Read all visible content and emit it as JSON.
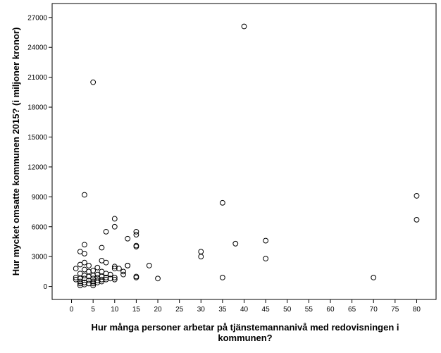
{
  "chart_data": {
    "type": "scatter",
    "title": "",
    "xlabel": [
      "Hur många personer arbetar på tjänstemannanivå med redovisningen i",
      "kommunen?"
    ],
    "ylabel": "Hur mycket omsatte kommunen 2015? (i miljoner kronor)",
    "xlim": [
      -4.5,
      84.5
    ],
    "ylim": [
      -1300,
      28400
    ],
    "xticks": [
      0,
      5,
      10,
      15,
      20,
      25,
      30,
      35,
      40,
      45,
      50,
      55,
      60,
      65,
      70,
      75,
      80
    ],
    "yticks": [
      0,
      3000,
      6000,
      9000,
      12000,
      15000,
      18000,
      21000,
      24000,
      27000
    ],
    "grid": false,
    "marker": "open-circle",
    "points": [
      {
        "x": 1,
        "y": 1800
      },
      {
        "x": 1,
        "y": 900
      },
      {
        "x": 1,
        "y": 700
      },
      {
        "x": 2,
        "y": 3500
      },
      {
        "x": 2,
        "y": 2200
      },
      {
        "x": 2,
        "y": 1300
      },
      {
        "x": 2,
        "y": 800
      },
      {
        "x": 2,
        "y": 500
      },
      {
        "x": 2,
        "y": 300
      },
      {
        "x": 2,
        "y": 100
      },
      {
        "x": 3,
        "y": 9200
      },
      {
        "x": 3,
        "y": 4200
      },
      {
        "x": 3,
        "y": 3300
      },
      {
        "x": 3,
        "y": 2400
      },
      {
        "x": 3,
        "y": 1700
      },
      {
        "x": 3,
        "y": 1100
      },
      {
        "x": 3,
        "y": 800
      },
      {
        "x": 3,
        "y": 400
      },
      {
        "x": 3,
        "y": 200
      },
      {
        "x": 4,
        "y": 2100
      },
      {
        "x": 4,
        "y": 1500
      },
      {
        "x": 4,
        "y": 1000
      },
      {
        "x": 4,
        "y": 600
      },
      {
        "x": 4,
        "y": 300
      },
      {
        "x": 5,
        "y": 20500
      },
      {
        "x": 5,
        "y": 1600
      },
      {
        "x": 5,
        "y": 1100
      },
      {
        "x": 5,
        "y": 800
      },
      {
        "x": 5,
        "y": 500
      },
      {
        "x": 5,
        "y": 300
      },
      {
        "x": 5,
        "y": 100
      },
      {
        "x": 6,
        "y": 1900
      },
      {
        "x": 6,
        "y": 1200
      },
      {
        "x": 6,
        "y": 900
      },
      {
        "x": 6,
        "y": 600
      },
      {
        "x": 6,
        "y": 400
      },
      {
        "x": 7,
        "y": 3900
      },
      {
        "x": 7,
        "y": 2600
      },
      {
        "x": 7,
        "y": 1500
      },
      {
        "x": 7,
        "y": 1000
      },
      {
        "x": 7,
        "y": 700
      },
      {
        "x": 7,
        "y": 500
      },
      {
        "x": 8,
        "y": 5500
      },
      {
        "x": 8,
        "y": 2400
      },
      {
        "x": 8,
        "y": 1300
      },
      {
        "x": 8,
        "y": 900
      },
      {
        "x": 8,
        "y": 700
      },
      {
        "x": 9,
        "y": 1200
      },
      {
        "x": 9,
        "y": 800
      },
      {
        "x": 10,
        "y": 6800
      },
      {
        "x": 10,
        "y": 6000
      },
      {
        "x": 10,
        "y": 2000
      },
      {
        "x": 10,
        "y": 1800
      },
      {
        "x": 10,
        "y": 900
      },
      {
        "x": 10,
        "y": 700
      },
      {
        "x": 11,
        "y": 1800
      },
      {
        "x": 12,
        "y": 1500
      },
      {
        "x": 12,
        "y": 1200
      },
      {
        "x": 13,
        "y": 4800
      },
      {
        "x": 13,
        "y": 2100
      },
      {
        "x": 13,
        "y": 2100
      },
      {
        "x": 15,
        "y": 5500
      },
      {
        "x": 15,
        "y": 5200
      },
      {
        "x": 15,
        "y": 4100
      },
      {
        "x": 15,
        "y": 4000
      },
      {
        "x": 15,
        "y": 1000
      },
      {
        "x": 15,
        "y": 900
      },
      {
        "x": 18,
        "y": 2100
      },
      {
        "x": 20,
        "y": 800
      },
      {
        "x": 30,
        "y": 3500
      },
      {
        "x": 30,
        "y": 3000
      },
      {
        "x": 35,
        "y": 8400
      },
      {
        "x": 35,
        "y": 900
      },
      {
        "x": 38,
        "y": 4300
      },
      {
        "x": 40,
        "y": 26100
      },
      {
        "x": 45,
        "y": 4600
      },
      {
        "x": 45,
        "y": 2800
      },
      {
        "x": 70,
        "y": 900
      },
      {
        "x": 80,
        "y": 9100
      },
      {
        "x": 80,
        "y": 6700
      }
    ]
  }
}
